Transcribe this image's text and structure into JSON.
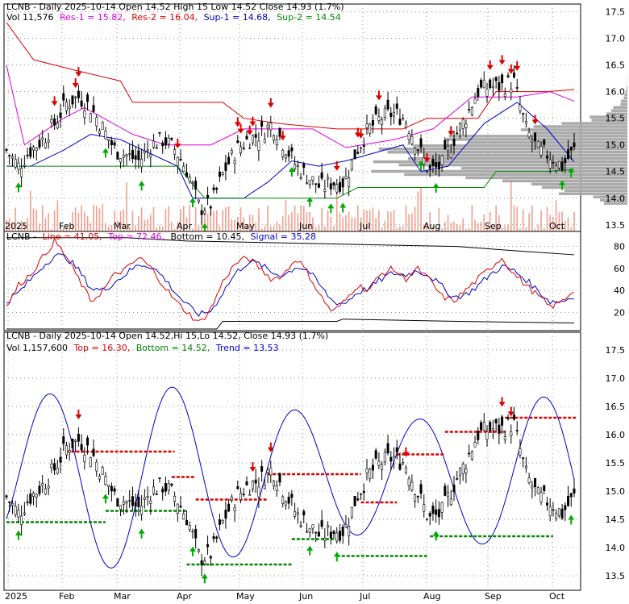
{
  "colors": {
    "up": "#00aa00",
    "down": "#dd0000",
    "res_line": "#dd0000",
    "top_line": "#dd00dd",
    "sup_line": "#0000cc",
    "sup2_line": "#008800",
    "volume": "#f0a090",
    "profile": "#aaaaaa",
    "indicator_line": "#dd0000",
    "signal": "#0000cc",
    "grid": "#999999"
  },
  "top_panel": {
    "title": "LCNB - Daily 2025-10-14 Open 14.52  High 15  Low 14.52  Close 14.93 (1.7%)",
    "legend": {
      "vol": "Vol 11,576",
      "res1": "Res-1 = 15.82,",
      "res2": "Res-2 = 16.04,",
      "sup1": "Sup-1 = 14.68,",
      "sup2": "Sup-2 = 14.54"
    }
  },
  "mid_panel": {
    "legend": {
      "symbol": "LCNB -",
      "line": "Line = 41.05,",
      "top": "Top = 72.46,",
      "bottom": "Bottom = 10.45,",
      "signal": "Signal = 35.28"
    }
  },
  "bottom_panel": {
    "title": "LCNB - Daily 2025-10-14 Open 14.52,Hi 15,Lo 14.52, Close 14.93 (1.7%)",
    "legend": {
      "vol": "Vol 1,157,600",
      "top": "Top = 16.30,",
      "bottom": "Bottom = 14.52,",
      "trend": "Trend = 13.53"
    }
  },
  "chart_data": [
    {
      "type": "candlestick",
      "panel": "price",
      "y_axis_ticks": [
        "17.5",
        "17.0",
        "16.5",
        "16.0",
        "15.5",
        "15.0",
        "14.5",
        "14.0",
        "13.5"
      ],
      "ylim": [
        13.3,
        17.6
      ],
      "x_labels": [
        "2025",
        "Feb",
        "Mar",
        "Apr",
        "May",
        "Jun",
        "Jul",
        "Aug",
        "Sep",
        "Oct"
      ],
      "close_series": [
        14.9,
        14.6,
        14.9,
        15.1,
        15.4,
        15.8,
        15.9,
        15.7,
        15.3,
        14.9,
        14.8,
        14.7,
        15.0,
        15.1,
        14.9,
        14.5,
        13.8,
        13.9,
        14.5,
        14.9,
        15.1,
        15.2,
        15.4,
        15.0,
        14.6,
        14.4,
        14.2,
        14.3,
        14.3,
        14.9,
        15.3,
        15.5,
        15.6,
        15.5,
        15.0,
        14.5,
        14.6,
        15.1,
        15.5,
        16.0,
        16.1,
        16.1,
        16.2,
        15.3,
        14.9,
        14.8,
        14.6,
        14.9
      ],
      "res1": 15.82,
      "res2": 16.04,
      "sup1": 14.68,
      "sup2": 14.54
    },
    {
      "type": "line",
      "panel": "indicator",
      "y_axis_ticks": [
        "80",
        "60",
        "40",
        "20"
      ],
      "ylim": [
        5,
        90
      ],
      "series": [
        {
          "name": "Line",
          "values": [
            25,
            45,
            55,
            70,
            85,
            70,
            50,
            30,
            40,
            55,
            60,
            70,
            60,
            45,
            30,
            20,
            10,
            25,
            50,
            65,
            70,
            60,
            50,
            55,
            70,
            55,
            35,
            20,
            30,
            45,
            40,
            55,
            60,
            50,
            60,
            50,
            35,
            30,
            40,
            50,
            60,
            70,
            55,
            45,
            35,
            25,
            30,
            41.05
          ]
        },
        {
          "name": "Signal",
          "values": [
            30,
            38,
            50,
            62,
            72,
            70,
            58,
            42,
            40,
            48,
            56,
            64,
            62,
            52,
            38,
            26,
            18,
            22,
            40,
            56,
            66,
            64,
            56,
            54,
            62,
            58,
            44,
            30,
            28,
            38,
            42,
            50,
            56,
            54,
            58,
            54,
            44,
            34,
            36,
            44,
            54,
            62,
            58,
            50,
            40,
            30,
            30,
            35.28
          ]
        }
      ],
      "top": 72.46,
      "bottom": 10.45
    },
    {
      "type": "candlestick",
      "panel": "price2",
      "y_axis_ticks": [
        "17.5",
        "17.0",
        "16.5",
        "16.0",
        "15.5",
        "15.0",
        "14.5",
        "14.0",
        "13.5"
      ],
      "ylim": [
        13.3,
        17.7
      ],
      "x_labels": [
        "2025",
        "Feb",
        "Mar",
        "Apr",
        "May",
        "Jun",
        "Jul",
        "Aug",
        "Sep",
        "Oct"
      ],
      "top": 16.3,
      "bottom": 14.52,
      "trend": 13.53
    }
  ]
}
